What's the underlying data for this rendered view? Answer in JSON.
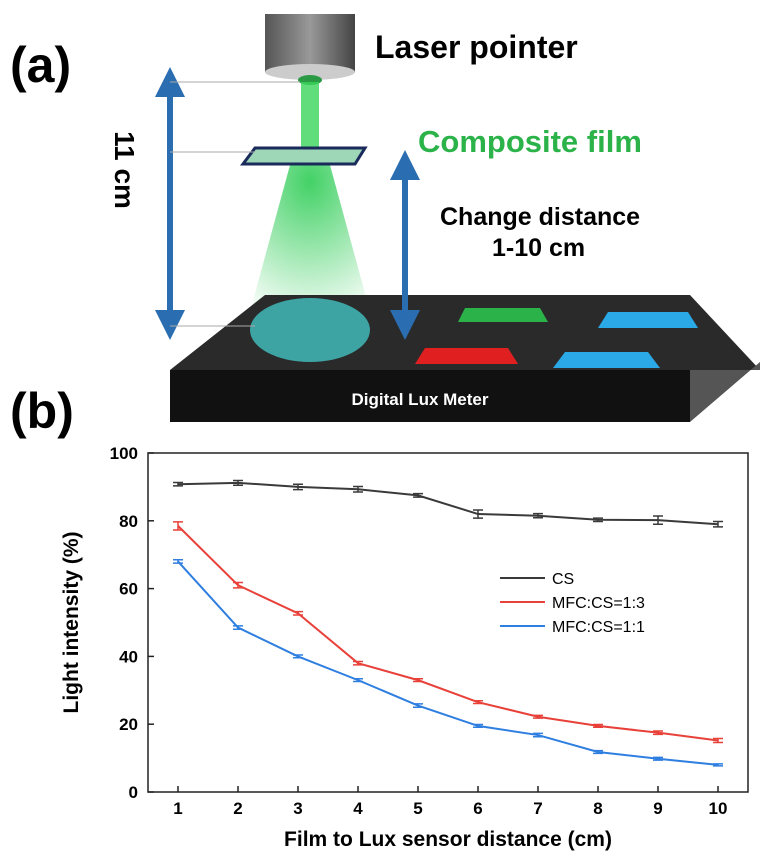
{
  "panel_a": {
    "label": "(a)",
    "laser": "Laser pointer",
    "distance": "11 cm",
    "film": "Composite film",
    "change": "Change distance",
    "range": "1-10 cm",
    "meter": "Digital Lux Meter"
  },
  "panel_b": {
    "label": "(b)"
  },
  "chart_data": {
    "type": "line",
    "x_label": "Film to Lux sensor distance (cm)",
    "y_label": "Light intensity (%)",
    "x": [
      1,
      2,
      3,
      4,
      5,
      6,
      7,
      8,
      9,
      10
    ],
    "xlim": [
      0.5,
      10.5
    ],
    "xticks": [
      1,
      2,
      3,
      4,
      5,
      6,
      7,
      8,
      9,
      10
    ],
    "ylim": [
      0,
      100
    ],
    "yticks": [
      0,
      20,
      40,
      60,
      80,
      100
    ],
    "series": [
      {
        "name": "CS",
        "color": "#3a3a3a",
        "values": [
          90.8,
          91.2,
          90,
          89.3,
          87.5,
          82,
          81.5,
          80.3,
          80.2,
          79
        ],
        "errors": [
          0.5,
          0.7,
          0.8,
          0.8,
          0.5,
          1.2,
          0.6,
          0.5,
          1.2,
          0.8
        ]
      },
      {
        "name": "MFC:CS=1:3",
        "color": "#e8413a",
        "values": [
          78.5,
          61,
          52.7,
          38,
          33,
          26.5,
          22.2,
          19.5,
          17.5,
          15.2
        ],
        "errors": [
          1.2,
          0.8,
          0.5,
          0.5,
          0.4,
          0.4,
          0.4,
          0.4,
          0.5,
          0.6
        ]
      },
      {
        "name": "MFC:CS=1:1",
        "color": "#2f7fe0",
        "values": [
          68,
          48.5,
          40,
          33,
          25.5,
          19.5,
          16.8,
          11.8,
          9.8,
          8
        ],
        "errors": [
          0.5,
          0.5,
          0.4,
          0.4,
          0.5,
          0.4,
          0.5,
          0.4,
          0.4,
          0.3
        ]
      }
    ]
  }
}
